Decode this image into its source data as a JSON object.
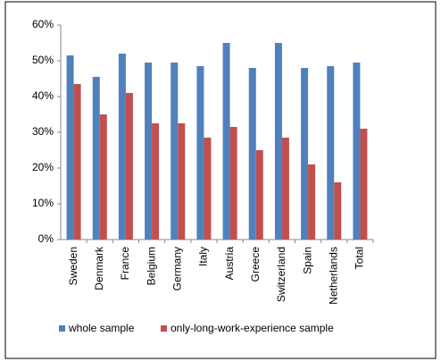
{
  "chart_data": {
    "type": "bar",
    "categories": [
      "Sweden",
      "Denmark",
      "France",
      "Belgium",
      "Germany",
      "Italy",
      "Austria",
      "Greece",
      "Switzerland",
      "Spain",
      "Netherlands",
      "Total"
    ],
    "series": [
      {
        "name": "whole sample",
        "color": "#4f81bd",
        "values": [
          51.5,
          45.5,
          52,
          49.5,
          49.5,
          48.5,
          55,
          48,
          55,
          48,
          48.5,
          49.5
        ]
      },
      {
        "name": "only-long-work-experience sample",
        "color": "#c0504d",
        "values": [
          43.5,
          35,
          41,
          32.5,
          32.5,
          28.5,
          31.5,
          25,
          28.5,
          21,
          16,
          31
        ]
      }
    ],
    "ylim": [
      0,
      60
    ],
    "yticks": [
      {
        "value": 0,
        "label": "0%"
      },
      {
        "value": 10,
        "label": "10%"
      },
      {
        "value": 20,
        "label": "20%"
      },
      {
        "value": 30,
        "label": "30%"
      },
      {
        "value": 40,
        "label": "40%"
      },
      {
        "value": 50,
        "label": "50%"
      },
      {
        "value": 60,
        "label": "60%"
      }
    ],
    "grid": false,
    "legend": "bottom"
  }
}
